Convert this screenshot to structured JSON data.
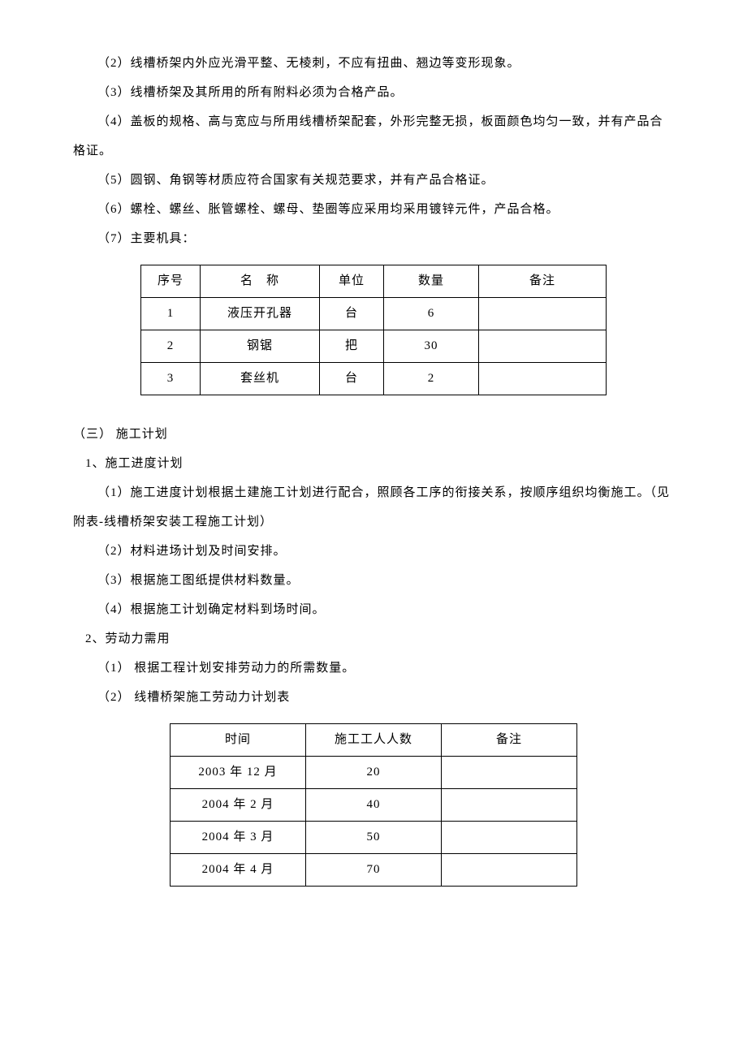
{
  "paragraphs": {
    "p2": "（2）线槽桥架内外应光滑平整、无棱刺，不应有扭曲、翘边等变形现象。",
    "p3": "（3）线槽桥架及其所用的所有附料必须为合格产品。",
    "p4": "（4）盖板的规格、高与宽应与所用线槽桥架配套，外形完整无损，板面颜色均匀一致，并有产品合格证。",
    "p5": "（5）圆钢、角钢等材质应符合国家有关规范要求，并有产品合格证。",
    "p6": "（6）螺栓、螺丝、胀管螺栓、螺母、垫圈等应采用均采用镀锌元件，产品合格。",
    "p7": "（7）主要机具："
  },
  "table1": {
    "headers": {
      "seq": "序号",
      "name": "名　称",
      "unit": "单位",
      "qty": "数量",
      "note": "备注"
    },
    "rows": [
      {
        "seq": "1",
        "name": "液压开孔器",
        "unit": "台",
        "qty": "6",
        "note": ""
      },
      {
        "seq": "2",
        "name": "钢锯",
        "unit": "把",
        "qty": "30",
        "note": ""
      },
      {
        "seq": "3",
        "name": "套丝机",
        "unit": "台",
        "qty": "2",
        "note": ""
      }
    ]
  },
  "sections": {
    "s3": "（三） 施工计划",
    "s3_1": "1、施工进度计划",
    "s3_1_1": "（1）施工进度计划根据土建施工计划进行配合，照顾各工序的衔接关系，按顺序组织均衡施工。（见附表-线槽桥架安装工程施工计划）",
    "s3_1_2": "（2）材料进场计划及时间安排。",
    "s3_1_3": "（3）根据施工图纸提供材料数量。",
    "s3_1_4": "（4）根据施工计划确定材料到场时间。",
    "s3_2": "2、劳动力需用",
    "s3_2_1": "（1） 根据工程计划安排劳动力的所需数量。",
    "s3_2_2": "（2） 线槽桥架施工劳动力计划表"
  },
  "table2": {
    "headers": {
      "time": "时间",
      "workers": "施工工人人数",
      "note": "备注"
    },
    "rows": [
      {
        "time": "2003 年 12 月",
        "workers": "20",
        "note": ""
      },
      {
        "time": "2004 年 2 月",
        "workers": "40",
        "note": ""
      },
      {
        "time": "2004 年 3 月",
        "workers": "50",
        "note": ""
      },
      {
        "time": "2004 年 4 月",
        "workers": "70",
        "note": ""
      }
    ]
  }
}
